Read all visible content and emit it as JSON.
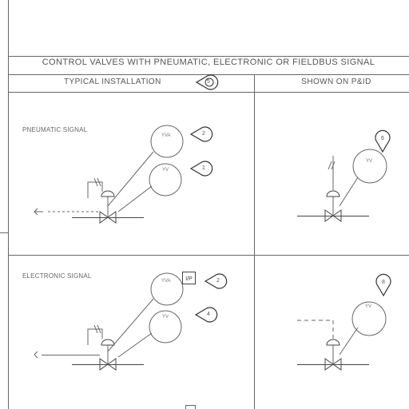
{
  "header": {
    "title": "CONTROL VALVES WITH PNEUMATIC, ELECTRONIC OR FIELDBUS SIGNAL",
    "left_column": "TYPICAL INSTALLATION",
    "right_column": "SHOWN ON P&ID"
  },
  "sections": {
    "pneumatic": {
      "label": "PNEUMATIC SIGNAL"
    },
    "electronic": {
      "label": "ELECTRONIC SIGNAL"
    }
  },
  "callouts": {
    "header_ref": "5",
    "pneu_a": "2",
    "pneu_b": "1",
    "pneu_pid": "6",
    "elec_a": "2",
    "elec_b": "4",
    "elec_pid": "8"
  },
  "bubbles": {
    "pneu_top": "YVA",
    "pneu_mid": "YV",
    "pneu_pid": "YV",
    "elec_top": "YVA",
    "elec_mid": "YV",
    "elec_pid": "YV"
  },
  "transducer_label": "I/P"
}
